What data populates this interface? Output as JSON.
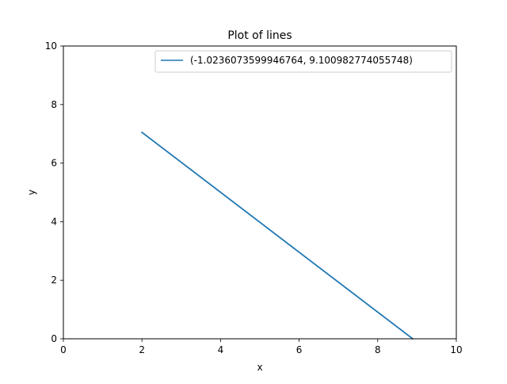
{
  "chart_data": {
    "type": "line",
    "title": "Plot of lines",
    "xlabel": "x",
    "ylabel": "y",
    "xlim": [
      0,
      10
    ],
    "ylim": [
      0,
      10
    ],
    "xticks": [
      0,
      2,
      4,
      6,
      8,
      10
    ],
    "yticks": [
      0,
      2,
      4,
      6,
      8,
      10
    ],
    "xtick_labels": [
      "0",
      "2",
      "4",
      "6",
      "8",
      "10"
    ],
    "ytick_labels": [
      "0",
      "2",
      "4",
      "6",
      "8",
      "10"
    ],
    "grid": false,
    "legend_position": "top-right",
    "series": [
      {
        "name": "(-1.0236073599946764, 9.100982774055748)",
        "color": "#1f77b4",
        "x": [
          2.0,
          8.89
        ],
        "y": [
          7.05,
          0.0
        ]
      }
    ]
  }
}
